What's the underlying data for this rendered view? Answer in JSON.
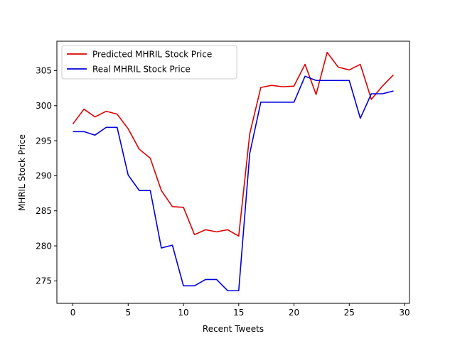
{
  "chart_data": {
    "type": "line",
    "title": "",
    "xlabel": "Recent Tweets",
    "ylabel": "MHRIL Stock Price",
    "xlim": [
      -1.45,
      30.45
    ],
    "ylim": [
      271.8,
      309.2
    ],
    "xticks": [
      0,
      5,
      10,
      15,
      20,
      25,
      30
    ],
    "yticks": [
      275,
      280,
      285,
      290,
      295,
      300,
      305
    ],
    "grid": false,
    "legend": "top-left",
    "series": [
      {
        "name": "Predicted MHRIL Stock Price",
        "color": "#dd0000",
        "x": [
          0,
          1,
          2,
          3,
          4,
          5,
          6,
          7,
          8,
          9,
          10,
          11,
          12,
          13,
          14,
          15,
          16,
          17,
          18,
          19,
          20,
          21,
          22,
          23,
          24,
          25,
          26,
          27,
          28,
          29
        ],
        "values": [
          297.4,
          299.5,
          298.4,
          299.2,
          298.8,
          296.7,
          293.8,
          292.5,
          287.9,
          285.6,
          285.5,
          281.6,
          282.3,
          282.0,
          282.3,
          281.4,
          296.0,
          302.6,
          302.9,
          302.7,
          302.8,
          305.9,
          301.6,
          307.6,
          305.5,
          305.1,
          305.9,
          300.9,
          302.8,
          304.4
        ]
      },
      {
        "name": "Real MHRIL Stock Price",
        "color": "#0000dd",
        "x": [
          0,
          1,
          2,
          3,
          4,
          5,
          6,
          7,
          8,
          9,
          10,
          11,
          12,
          13,
          14,
          15,
          16,
          17,
          18,
          19,
          20,
          21,
          22,
          23,
          24,
          25,
          26,
          27,
          28,
          29
        ],
        "values": [
          296.3,
          296.3,
          295.8,
          296.9,
          296.9,
          290.1,
          287.9,
          287.9,
          279.7,
          280.1,
          274.3,
          274.3,
          275.2,
          275.2,
          273.6,
          273.6,
          293.2,
          300.5,
          300.5,
          300.5,
          300.5,
          304.2,
          303.6,
          303.6,
          303.6,
          303.6,
          298.2,
          301.7,
          301.7,
          302.1
        ]
      }
    ]
  }
}
